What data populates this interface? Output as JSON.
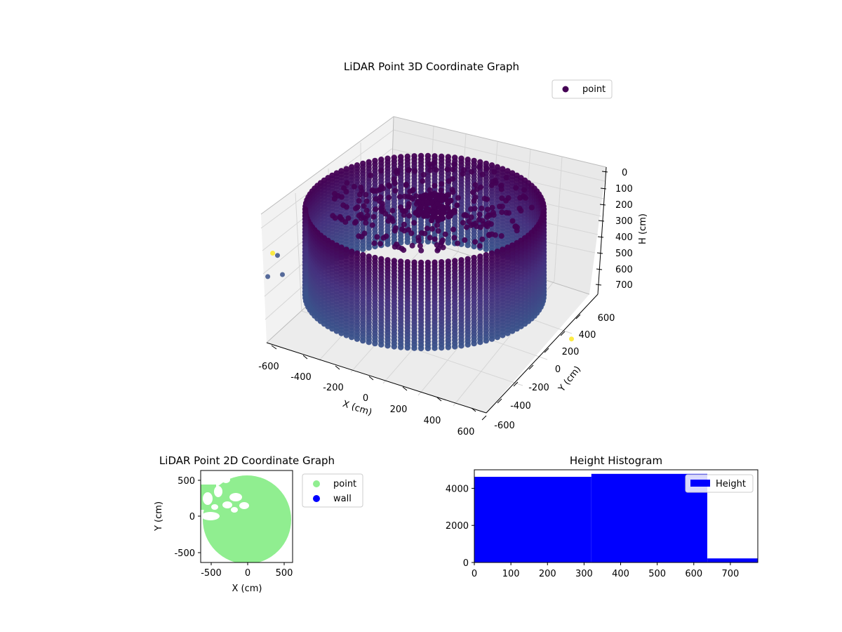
{
  "colors": {
    "point_high": "#440154",
    "point_mid": "#3b528b",
    "point_low": "#fde725",
    "point_2d": "#90ee90",
    "wall": "#0000ff",
    "histogram": "#0000ff",
    "pane": "#f2f2f2",
    "grid": "#d8d8d8"
  },
  "chart_data": [
    {
      "type": "scatter3d",
      "title": "LiDAR Point 3D Coordinate Graph",
      "xlabel": "X (cm)",
      "ylabel": "Y (cm)",
      "zlabel": "H (cm)",
      "xlim": [
        -650,
        650
      ],
      "ylim": [
        -650,
        650
      ],
      "zlim": [
        780,
        -20
      ],
      "z_inverted": true,
      "xticks": [
        -600,
        -400,
        -200,
        0,
        200,
        400,
        600
      ],
      "yticks": [
        -600,
        -400,
        -200,
        0,
        200,
        400,
        600
      ],
      "zticks": [
        0,
        100,
        200,
        300,
        400,
        500,
        600,
        700
      ],
      "legend": [
        "point"
      ],
      "legend_position": "upper-right",
      "series": [
        {
          "name": "point",
          "structure": "cylindrical wall of vertical point columns plus ceiling points",
          "wall_radius": 560,
          "wall_height_range": [
            0,
            640
          ],
          "outliers": [
            {
              "x": -600,
              "y": -300,
              "h": 620
            },
            {
              "x": -580,
              "y": -200,
              "h": 700
            },
            {
              "x": -640,
              "y": 100,
              "h": 480
            },
            {
              "x": 600,
              "y": 400,
              "h": 760
            },
            {
              "x": -620,
              "y": -500,
              "h": 760
            }
          ]
        }
      ]
    },
    {
      "type": "scatter",
      "title": "LiDAR Point 2D Coordinate Graph",
      "xlabel": "X (cm)",
      "ylabel": "Y (cm)",
      "xlim": [
        -650,
        620
      ],
      "ylim": [
        -640,
        660
      ],
      "xticks": [
        -500,
        0,
        500
      ],
      "yticks": [
        -500,
        0,
        500
      ],
      "legend": [
        "point",
        "wall"
      ],
      "legend_position": "outside-right",
      "series": [
        {
          "name": "point",
          "shape": "filled disc",
          "center": [
            0,
            0
          ],
          "radius": 610
        },
        {
          "name": "wall",
          "points": []
        }
      ]
    },
    {
      "type": "bar",
      "title": "Height Histogram",
      "xlabel": "",
      "ylabel": "",
      "xlim": [
        0,
        775
      ],
      "ylim": [
        0,
        5000
      ],
      "xticks": [
        0,
        100,
        200,
        300,
        400,
        500,
        600,
        700
      ],
      "yticks": [
        0,
        2000,
        4000
      ],
      "legend": [
        "Height"
      ],
      "legend_position": "upper-right",
      "bins": [
        {
          "start": 0,
          "end": 320,
          "count": 4620
        },
        {
          "start": 320,
          "end": 637,
          "count": 4780
        },
        {
          "start": 637,
          "end": 775,
          "count": 220
        }
      ]
    }
  ]
}
